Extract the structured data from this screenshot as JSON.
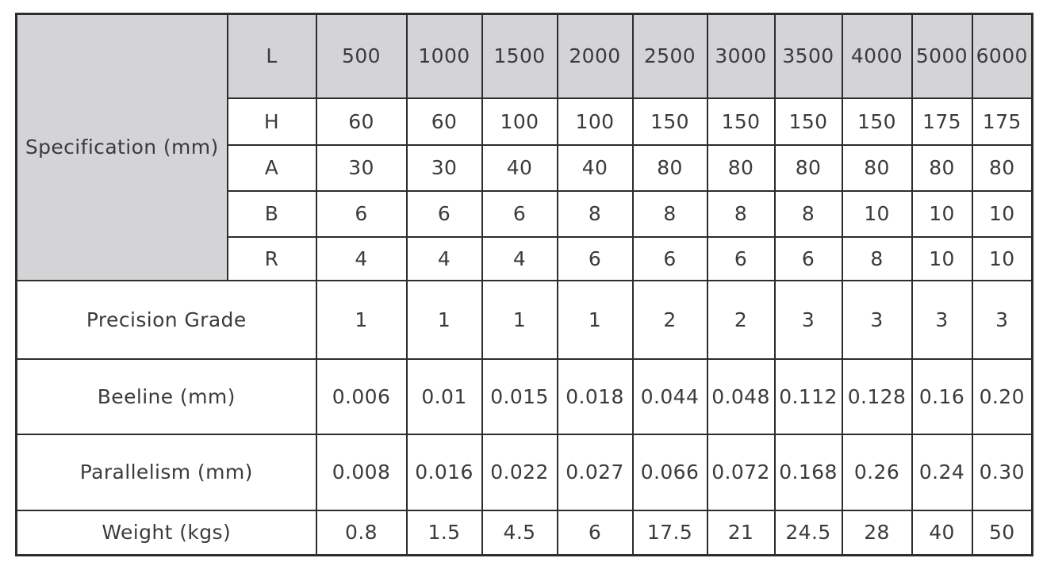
{
  "colors": {
    "header_bg": "#d4d4d6",
    "border": "#2d2d2f",
    "text": "#3b3b3d",
    "page_bg": "#ffffff"
  },
  "table": {
    "spec_label": "Specification (mm)",
    "header": {
      "param": "L",
      "values": [
        "500",
        "1000",
        "1500",
        "2000",
        "2500",
        "3000",
        "3500",
        "4000",
        "5000",
        "6000"
      ]
    },
    "spec_rows": [
      {
        "param": "H",
        "values": [
          "60",
          "60",
          "100",
          "100",
          "150",
          "150",
          "150",
          "150",
          "175",
          "175"
        ]
      },
      {
        "param": "A",
        "values": [
          "30",
          "30",
          "40",
          "40",
          "80",
          "80",
          "80",
          "80",
          "80",
          "80"
        ]
      },
      {
        "param": "B",
        "values": [
          "6",
          "6",
          "6",
          "8",
          "8",
          "8",
          "8",
          "10",
          "10",
          "10"
        ]
      },
      {
        "param": "R",
        "values": [
          "4",
          "4",
          "4",
          "6",
          "6",
          "6",
          "6",
          "8",
          "10",
          "10"
        ]
      }
    ],
    "summary_rows": [
      {
        "label": "Precision Grade",
        "values": [
          "1",
          "1",
          "1",
          "1",
          "2",
          "2",
          "3",
          "3",
          "3",
          "3"
        ]
      },
      {
        "label": "Beeline (mm)",
        "values": [
          "0.006",
          "0.01",
          "0.015",
          "0.018",
          "0.044",
          "0.048",
          "0.112",
          "0.128",
          "0.16",
          "0.20"
        ]
      },
      {
        "label": "Parallelism (mm)",
        "values": [
          "0.008",
          "0.016",
          "0.022",
          "0.027",
          "0.066",
          "0.072",
          "0.168",
          "0.26",
          "0.24",
          "0.30"
        ]
      },
      {
        "label": "Weight (kgs)",
        "values": [
          "0.8",
          "1.5",
          "4.5",
          "6",
          "17.5",
          "21",
          "24.5",
          "28",
          "40",
          "50"
        ]
      }
    ]
  }
}
